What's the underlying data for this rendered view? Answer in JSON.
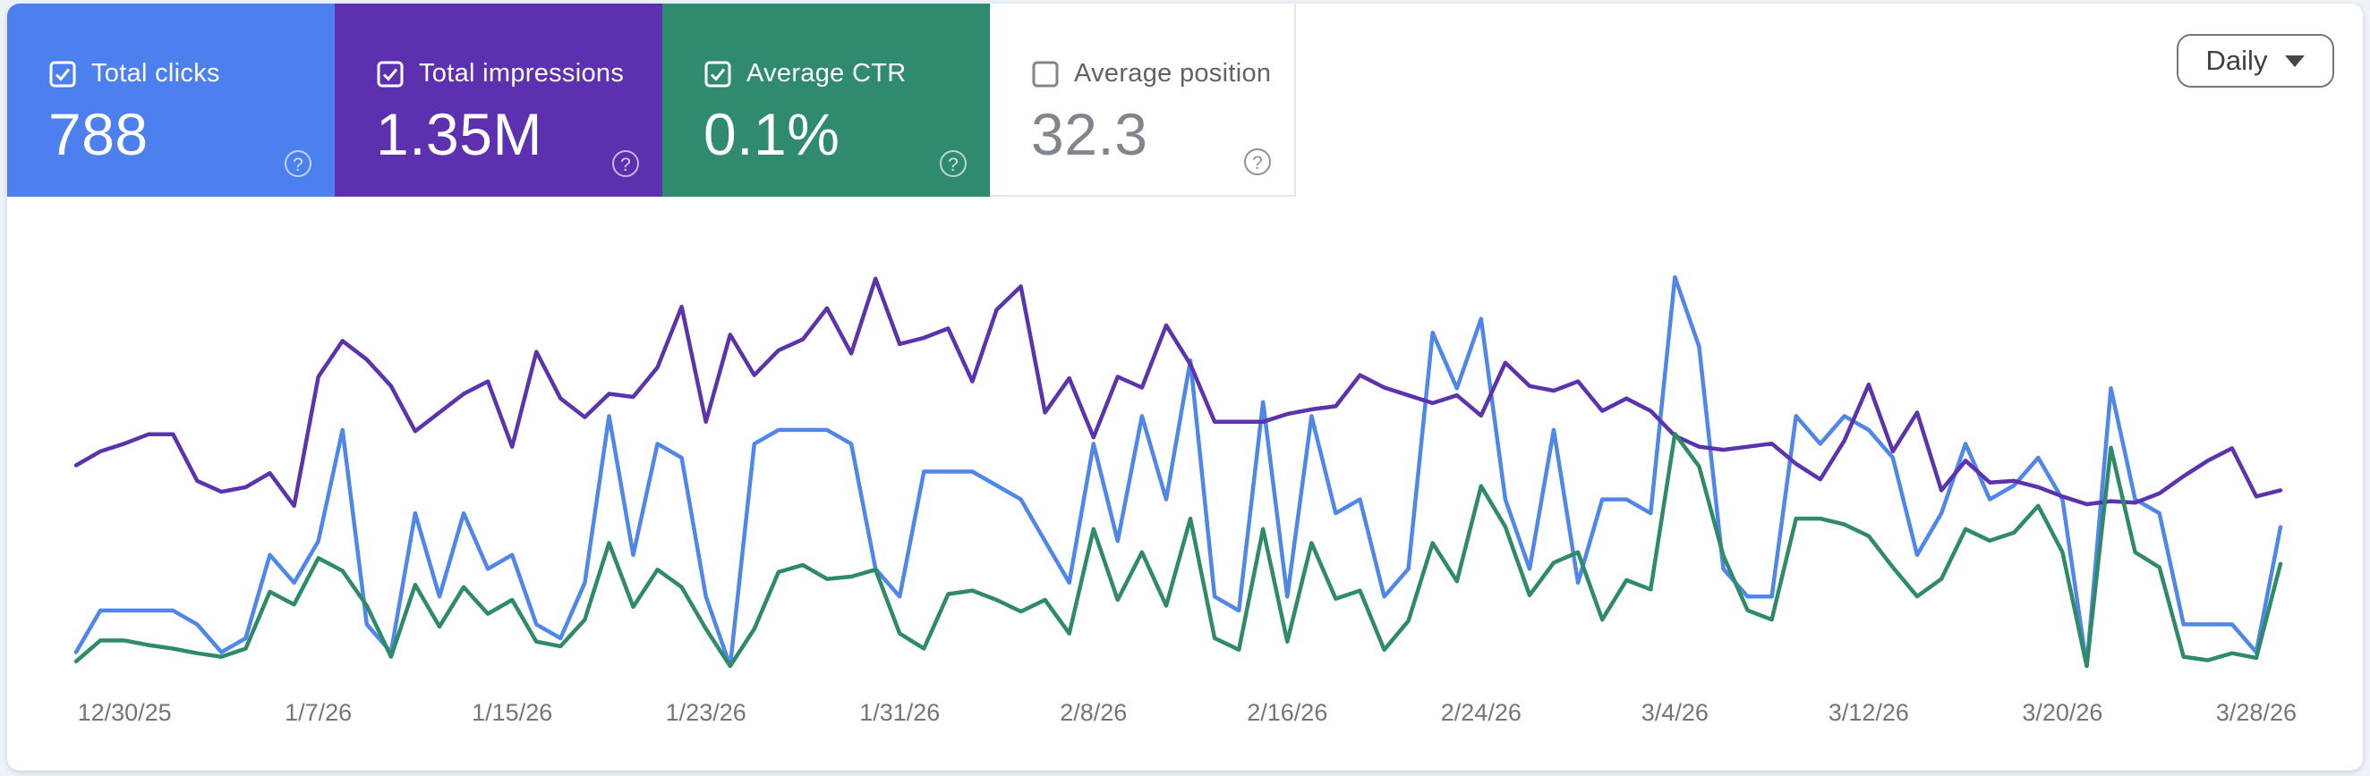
{
  "page": {
    "background": "#edf1f8",
    "panel_background": "#ffffff"
  },
  "help_icon": "?",
  "metric_tiles": [
    {
      "id": "clicks",
      "label": "Total clicks",
      "value": "788",
      "checked": true,
      "background": "#4b80ee"
    },
    {
      "id": "impressions",
      "label": "Total impressions",
      "value": "1.35M",
      "checked": true,
      "background": "#5d30b0"
    },
    {
      "id": "ctr",
      "label": "Average CTR",
      "value": "0.1%",
      "checked": true,
      "background": "#2f8a6f"
    },
    {
      "id": "position",
      "label": "Average position",
      "value": "32.3",
      "checked": false,
      "background": "#ffffff"
    }
  ],
  "granularity_dropdown": {
    "label": "Daily",
    "icon": "chevron-down"
  },
  "chart_data": {
    "type": "line",
    "title": "",
    "xlabel": "",
    "ylabel": "",
    "grid": false,
    "y_axis": "hidden",
    "legend_position": "none",
    "x_start_date": "12/28/25",
    "x_tick_labels": [
      "12/30/25",
      "1/7/26",
      "1/15/26",
      "1/23/26",
      "1/31/26",
      "2/8/26",
      "2/16/26",
      "2/24/26",
      "3/4/26",
      "3/12/26",
      "3/20/26",
      "3/28/26"
    ],
    "x_tick_day_indices": [
      2,
      10,
      18,
      26,
      34,
      42,
      50,
      58,
      66,
      74,
      82,
      90
    ],
    "series": [
      {
        "name": "Clicks",
        "color": "#4f86ec",
        "ylim": [
          0,
          28
        ],
        "values": [
          1,
          4,
          4,
          4,
          4,
          3,
          1,
          2,
          8,
          6,
          9,
          17,
          3,
          1,
          11,
          5,
          11,
          7,
          8,
          3,
          2,
          6,
          18,
          8,
          16,
          15,
          5,
          0,
          16,
          17,
          17,
          17,
          16,
          7,
          5,
          14,
          14,
          14,
          13,
          12,
          9,
          6,
          16,
          9,
          18,
          12,
          22,
          5,
          4,
          19,
          5,
          18,
          11,
          12,
          5,
          7,
          24,
          20,
          25,
          12,
          7,
          17,
          6,
          12,
          12,
          11,
          28,
          23,
          7,
          5,
          5,
          18,
          16,
          18,
          17,
          15,
          8,
          11,
          16,
          12,
          13,
          15,
          12,
          0,
          20,
          12,
          11,
          3,
          3,
          3,
          1,
          10
        ]
      },
      {
        "name": "Impressions",
        "color": "#5c33ae",
        "ylim": [
          0,
          25000
        ],
        "values": [
          12900,
          13800,
          14300,
          14900,
          14900,
          11900,
          11200,
          11500,
          12400,
          10300,
          18600,
          20900,
          19700,
          18000,
          15100,
          16300,
          17500,
          18300,
          14100,
          20200,
          17200,
          16000,
          17500,
          17300,
          19200,
          23100,
          15700,
          21300,
          18700,
          20300,
          21000,
          23000,
          20100,
          24900,
          20700,
          21100,
          21700,
          18300,
          22900,
          24400,
          16300,
          18500,
          14700,
          18600,
          17900,
          21900,
          19400,
          15700,
          15700,
          15700,
          16200,
          16500,
          16700,
          18700,
          17900,
          17400,
          16900,
          17400,
          16100,
          19500,
          18000,
          17700,
          18300,
          16400,
          17200,
          16400,
          14800,
          14100,
          13900,
          14100,
          14300,
          13000,
          12000,
          14500,
          18100,
          13800,
          16300,
          11300,
          13200,
          11800,
          11900,
          11500,
          10900,
          10400,
          10600,
          10500,
          11100,
          12200,
          13200,
          14000,
          10900,
          11300
        ]
      },
      {
        "name": "CTR (%)",
        "color": "#2f8a68",
        "ylim": [
          0,
          0.335
        ],
        "values": [
          0.004,
          0.022,
          0.022,
          0.018,
          0.015,
          0.011,
          0.008,
          0.015,
          0.064,
          0.053,
          0.093,
          0.082,
          0.052,
          0.008,
          0.07,
          0.034,
          0.068,
          0.045,
          0.057,
          0.021,
          0.017,
          0.04,
          0.106,
          0.051,
          0.083,
          0.068,
          0.032,
          0,
          0.032,
          0.081,
          0.087,
          0.075,
          0.077,
          0.083,
          0.028,
          0.015,
          0.062,
          0.065,
          0.057,
          0.047,
          0.057,
          0.028,
          0.118,
          0.057,
          0.098,
          0.052,
          0.127,
          0.024,
          0.014,
          0.118,
          0.021,
          0.106,
          0.058,
          0.065,
          0.014,
          0.039,
          0.106,
          0.073,
          0.155,
          0.12,
          0.061,
          0.089,
          0.098,
          0.04,
          0.074,
          0.066,
          0.2,
          0.172,
          0.095,
          0.048,
          0.04,
          0.127,
          0.127,
          0.122,
          0.112,
          0.085,
          0.06,
          0.075,
          0.118,
          0.108,
          0.115,
          0.138,
          0.098,
          0,
          0.188,
          0.098,
          0.085,
          0.008,
          0.005,
          0.011,
          0.007,
          0.088
        ]
      }
    ]
  }
}
